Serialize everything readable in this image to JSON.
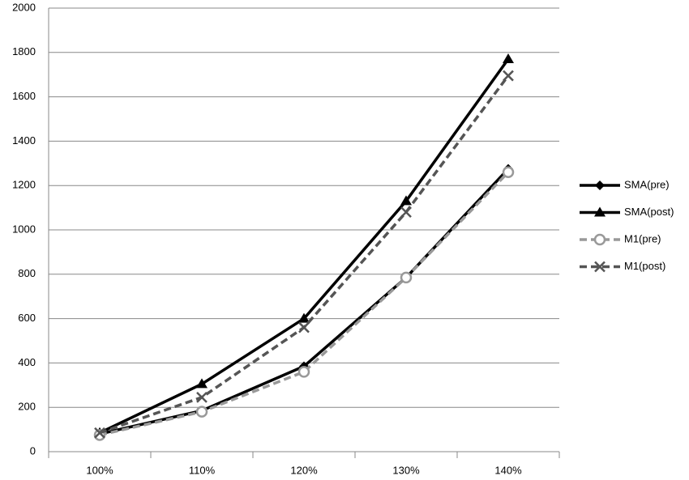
{
  "chart_data": {
    "type": "line",
    "categories": [
      "100%",
      "110%",
      "120%",
      "130%",
      "140%"
    ],
    "series": [
      {
        "name": "SMA(pre)",
        "color": "#000000",
        "marker": "diamond",
        "dashed": false,
        "values": [
          80,
          185,
          385,
          785,
          1275
        ]
      },
      {
        "name": "SMA(post)",
        "color": "#000000",
        "marker": "triangle",
        "dashed": false,
        "values": [
          85,
          305,
          600,
          1130,
          1770
        ]
      },
      {
        "name": "M1(pre)",
        "color": "#999999",
        "marker": "circle",
        "dashed": true,
        "values": [
          75,
          180,
          360,
          785,
          1260
        ]
      },
      {
        "name": "M1(post)",
        "color": "#555555",
        "marker": "x",
        "dashed": true,
        "values": [
          85,
          245,
          560,
          1080,
          1695
        ]
      }
    ],
    "ylim": [
      0,
      2000
    ],
    "yticks": [
      0,
      200,
      400,
      600,
      800,
      1000,
      1200,
      1400,
      1600,
      1800,
      2000
    ],
    "grid": true,
    "legend": "right"
  }
}
